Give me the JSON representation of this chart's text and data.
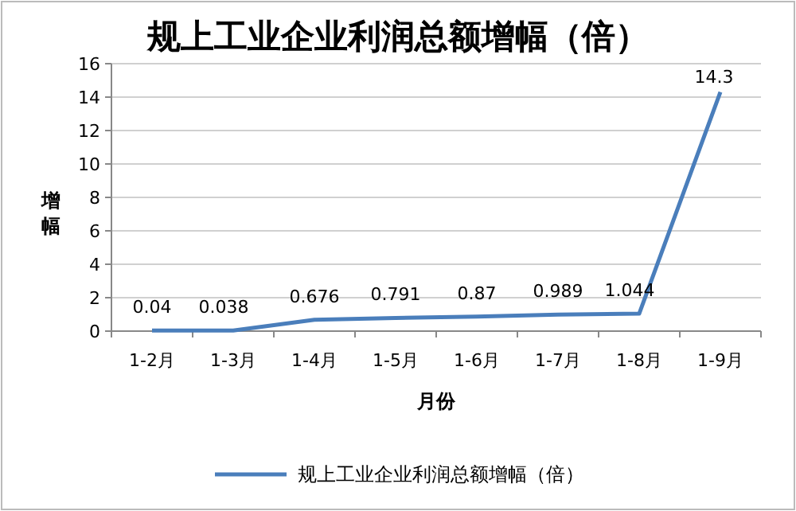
{
  "chart_data": {
    "type": "line",
    "title": "规上工业企业利润总额增幅（倍）",
    "xlabel": "月份",
    "ylabel": "增幅",
    "categories": [
      "1-2月",
      "1-3月",
      "1-4月",
      "1-5月",
      "1-6月",
      "1-7月",
      "1-8月",
      "1-9月"
    ],
    "series": [
      {
        "name": "规上工业企业利润总额增幅（倍）",
        "color": "#4a7ebb",
        "values": [
          0.04,
          0.038,
          0.676,
          0.791,
          0.87,
          0.989,
          1.044,
          14.3
        ]
      }
    ],
    "ylim": [
      0,
      16
    ],
    "yticks": [
      0,
      2,
      4,
      6,
      8,
      10,
      12,
      14,
      16
    ],
    "grid": "y",
    "legend": "bottom",
    "data_labels": true,
    "marker": "none"
  }
}
